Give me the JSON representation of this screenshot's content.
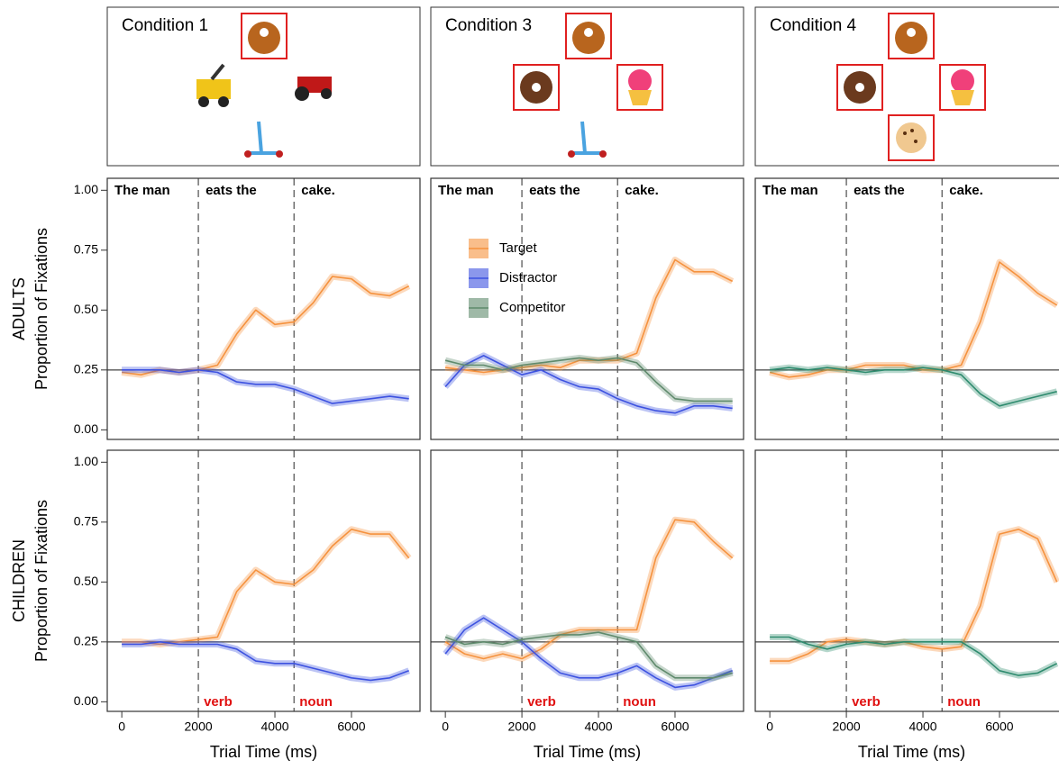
{
  "panels": [
    {
      "title": "Condition 1"
    },
    {
      "title": "Condition 3"
    },
    {
      "title": "Condition 4"
    }
  ],
  "chart_data": [
    {
      "type": "line",
      "row_label": "ADULTS",
      "ylabel": "Proportion of Fixations",
      "x": [
        0,
        500,
        1000,
        1500,
        2000,
        2500,
        3000,
        3500,
        4000,
        4500,
        5000,
        5500,
        6000,
        6500,
        7000,
        7500
      ],
      "xlim": [
        -380,
        7790
      ],
      "ylim": [
        -0.04,
        1.05
      ],
      "yticks": [
        {
          "value": 0,
          "label": "0.00"
        },
        {
          "value": 0.25,
          "label": "0.25"
        },
        {
          "value": 0.5,
          "label": "0.50"
        },
        {
          "value": 0.75,
          "label": "0.75"
        },
        {
          "value": 1,
          "label": "1.00"
        }
      ],
      "vlines": [
        2000,
        4500
      ],
      "hline": 0.25,
      "top_labels": [
        "The man",
        "eats the",
        "cake."
      ],
      "series": [
        {
          "color": "#f5923e",
          "values": [
            0.24,
            0.23,
            0.25,
            0.24,
            0.25,
            0.27,
            0.4,
            0.5,
            0.44,
            0.45,
            0.53,
            0.64,
            0.63,
            0.57,
            0.56,
            0.6
          ]
        },
        {
          "color": "#3d52e0",
          "values": [
            0.25,
            0.25,
            0.25,
            0.24,
            0.25,
            0.24,
            0.2,
            0.19,
            0.19,
            0.17,
            0.14,
            0.11,
            0.12,
            0.13,
            0.14,
            0.13
          ]
        }
      ]
    },
    {
      "type": "line",
      "x": [
        0,
        500,
        1000,
        1500,
        2000,
        2500,
        3000,
        3500,
        4000,
        4500,
        5000,
        5500,
        6000,
        6500,
        7000,
        7500
      ],
      "xlim": [
        -380,
        7790
      ],
      "ylim": [
        -0.04,
        1.05
      ],
      "vlines": [
        2000,
        4500
      ],
      "hline": 0.25,
      "top_labels": [
        "The man",
        "eats the",
        "cake."
      ],
      "legend": "center-left",
      "series": [
        {
          "name": "Target",
          "color": "#f5923e",
          "values": [
            0.26,
            0.25,
            0.24,
            0.25,
            0.26,
            0.27,
            0.26,
            0.29,
            0.29,
            0.29,
            0.32,
            0.55,
            0.71,
            0.66,
            0.66,
            0.62
          ]
        },
        {
          "name": "Distractor",
          "color": "#3d52e0",
          "values": [
            0.18,
            0.27,
            0.31,
            0.27,
            0.23,
            0.25,
            0.21,
            0.18,
            0.17,
            0.13,
            0.1,
            0.08,
            0.07,
            0.1,
            0.1,
            0.09
          ]
        },
        {
          "name": "Competitor",
          "color": "#5f8a6c",
          "values": [
            0.29,
            0.27,
            0.27,
            0.25,
            0.27,
            0.28,
            0.29,
            0.3,
            0.29,
            0.3,
            0.28,
            0.2,
            0.13,
            0.12,
            0.12,
            0.12
          ]
        }
      ]
    },
    {
      "type": "line",
      "x": [
        0,
        500,
        1000,
        1500,
        2000,
        2500,
        3000,
        3500,
        4000,
        4500,
        5000,
        5500,
        6000,
        6500,
        7000,
        7500
      ],
      "xlim": [
        -380,
        7790
      ],
      "ylim": [
        -0.04,
        1.05
      ],
      "vlines": [
        2000,
        4500
      ],
      "hline": 0.25,
      "top_labels": [
        "The man",
        "eats the",
        "cake."
      ],
      "series": [
        {
          "color": "#f5923e",
          "values": [
            0.24,
            0.22,
            0.23,
            0.25,
            0.25,
            0.27,
            0.27,
            0.27,
            0.25,
            0.25,
            0.27,
            0.45,
            0.7,
            0.64,
            0.57,
            0.52
          ]
        },
        {
          "color": "#2e8b6e",
          "values": [
            0.25,
            0.26,
            0.25,
            0.26,
            0.25,
            0.24,
            0.25,
            0.25,
            0.26,
            0.25,
            0.23,
            0.15,
            0.1,
            0.12,
            0.14,
            0.16
          ]
        }
      ]
    },
    {
      "type": "line",
      "row_label": "CHILDREN",
      "ylabel": "Proportion of Fixations",
      "xlabel": "Trial Time (ms)",
      "x": [
        0,
        500,
        1000,
        1500,
        2000,
        2500,
        3000,
        3500,
        4000,
        4500,
        5000,
        5500,
        6000,
        6500,
        7000,
        7500
      ],
      "xlim": [
        -380,
        7790
      ],
      "ylim": [
        -0.04,
        1.05
      ],
      "xticks": [
        0,
        2000,
        4000,
        6000
      ],
      "yticks": [
        {
          "value": 0,
          "label": "0.00"
        },
        {
          "value": 0.25,
          "label": "0.25"
        },
        {
          "value": 0.5,
          "label": "0.50"
        },
        {
          "value": 0.75,
          "label": "0.75"
        },
        {
          "value": 1,
          "label": "1.00"
        }
      ],
      "vlines": [
        2000,
        4500
      ],
      "hline": 0.25,
      "bottom_labels": [
        "verb",
        "noun"
      ],
      "series": [
        {
          "color": "#f5923e",
          "values": [
            0.25,
            0.25,
            0.24,
            0.25,
            0.26,
            0.27,
            0.46,
            0.55,
            0.5,
            0.49,
            0.55,
            0.65,
            0.72,
            0.7,
            0.7,
            0.6
          ]
        },
        {
          "color": "#3d52e0",
          "values": [
            0.24,
            0.24,
            0.25,
            0.24,
            0.24,
            0.24,
            0.22,
            0.17,
            0.16,
            0.16,
            0.14,
            0.12,
            0.1,
            0.09,
            0.1,
            0.13
          ]
        }
      ]
    },
    {
      "type": "line",
      "xlabel": "Trial Time (ms)",
      "x": [
        0,
        500,
        1000,
        1500,
        2000,
        2500,
        3000,
        3500,
        4000,
        4500,
        5000,
        5500,
        6000,
        6500,
        7000,
        7500
      ],
      "xlim": [
        -380,
        7790
      ],
      "ylim": [
        -0.04,
        1.05
      ],
      "xticks": [
        0,
        2000,
        4000,
        6000
      ],
      "vlines": [
        2000,
        4500
      ],
      "hline": 0.25,
      "bottom_labels": [
        "verb",
        "noun"
      ],
      "series": [
        {
          "color": "#f5923e",
          "values": [
            0.25,
            0.2,
            0.18,
            0.2,
            0.18,
            0.22,
            0.28,
            0.3,
            0.3,
            0.3,
            0.3,
            0.6,
            0.76,
            0.75,
            0.67,
            0.6
          ]
        },
        {
          "color": "#3d52e0",
          "values": [
            0.2,
            0.3,
            0.35,
            0.3,
            0.25,
            0.18,
            0.12,
            0.1,
            0.1,
            0.12,
            0.15,
            0.1,
            0.06,
            0.07,
            0.1,
            0.13
          ]
        },
        {
          "color": "#5f8a6c",
          "values": [
            0.27,
            0.24,
            0.25,
            0.24,
            0.26,
            0.27,
            0.28,
            0.28,
            0.29,
            0.27,
            0.25,
            0.15,
            0.1,
            0.1,
            0.1,
            0.12
          ]
        }
      ]
    },
    {
      "type": "line",
      "xlabel": "Trial Time (ms)",
      "x": [
        0,
        500,
        1000,
        1500,
        2000,
        2500,
        3000,
        3500,
        4000,
        4500,
        5000,
        5500,
        6000,
        6500,
        7000,
        7500
      ],
      "xlim": [
        -380,
        7790
      ],
      "ylim": [
        -0.04,
        1.05
      ],
      "xticks": [
        0,
        2000,
        4000,
        6000
      ],
      "vlines": [
        2000,
        4500
      ],
      "hline": 0.25,
      "bottom_labels": [
        "verb",
        "noun"
      ],
      "series": [
        {
          "color": "#f5923e",
          "values": [
            0.17,
            0.17,
            0.2,
            0.25,
            0.26,
            0.25,
            0.24,
            0.25,
            0.23,
            0.22,
            0.23,
            0.4,
            0.7,
            0.72,
            0.68,
            0.5
          ]
        },
        {
          "color": "#2e8b6e",
          "values": [
            0.27,
            0.27,
            0.24,
            0.22,
            0.24,
            0.25,
            0.24,
            0.25,
            0.25,
            0.25,
            0.25,
            0.2,
            0.13,
            0.11,
            0.12,
            0.16
          ]
        }
      ]
    }
  ]
}
